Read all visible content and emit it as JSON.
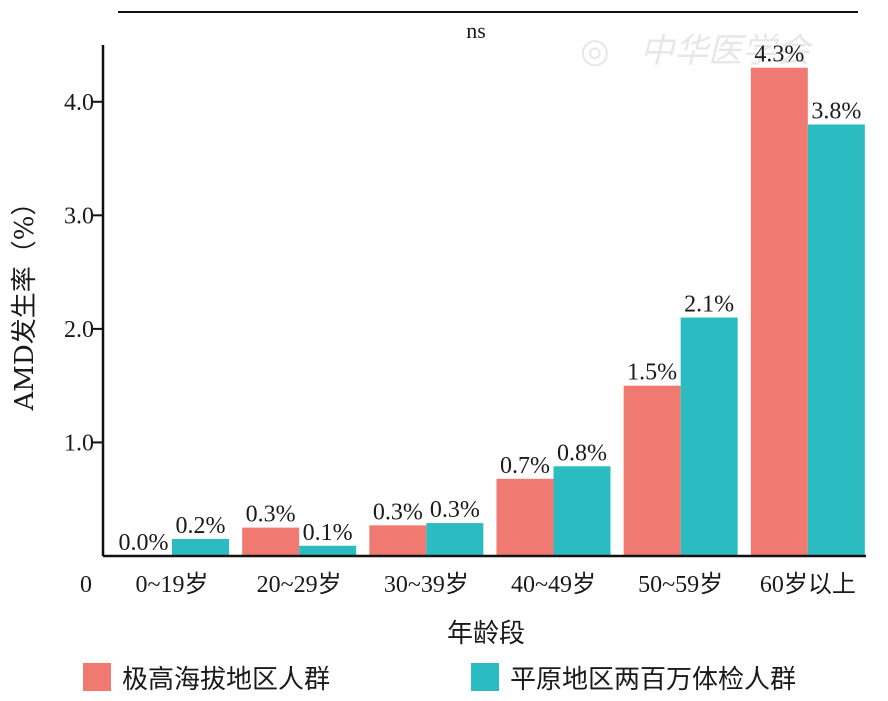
{
  "chart_data": {
    "type": "bar",
    "title": "",
    "annotation": "ns",
    "watermark": "中华医学会",
    "xlabel": "年龄段",
    "ylabel": "AMD发生率（%）",
    "ylim": [
      0,
      4.5
    ],
    "yticks": [
      "0",
      "1.0",
      "2.0",
      "3.0",
      "4.0"
    ],
    "ytick_values": [
      0,
      1,
      2,
      3,
      4
    ],
    "categories": [
      "0~19岁",
      "20~29岁",
      "30~39岁",
      "40~49岁",
      "50~59岁",
      "60岁以上"
    ],
    "series": [
      {
        "name": "极高海拔地区人群",
        "color": "#f07a72",
        "values": [
          0.0,
          0.25,
          0.27,
          0.68,
          1.5,
          4.3
        ],
        "labels": [
          "0.0%",
          "0.3%",
          "0.3%",
          "0.7%",
          "1.5%",
          "4.3%"
        ]
      },
      {
        "name": "平原地区两百万体检人群",
        "color": "#2bbcc1",
        "values": [
          0.15,
          0.09,
          0.29,
          0.79,
          2.1,
          3.8
        ],
        "labels": [
          "0.2%",
          "0.1%",
          "0.3%",
          "0.8%",
          "2.1%",
          "3.8%"
        ]
      }
    ],
    "legend_position": "bottom",
    "grid": false
  }
}
